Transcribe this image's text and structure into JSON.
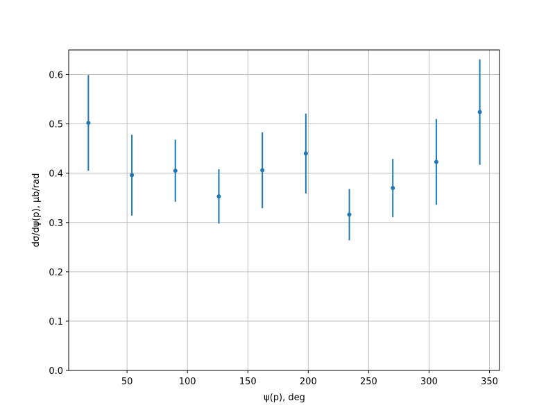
{
  "chart_data": {
    "type": "errorbar",
    "xlabel": "ψ(p), deg",
    "ylabel": "dσ/dψ(p), μb/rad",
    "x": [
      18,
      54,
      90,
      126,
      162,
      198,
      234,
      270,
      306,
      342
    ],
    "series": [
      {
        "color": "#1f77b4",
        "values": [
          0.502,
          0.396,
          0.405,
          0.353,
          0.406,
          0.44,
          0.316,
          0.37,
          0.423,
          0.524
        ],
        "errors": [
          0.097,
          0.082,
          0.063,
          0.055,
          0.077,
          0.081,
          0.052,
          0.059,
          0.087,
          0.107
        ]
      }
    ],
    "xlim": [
      1.7,
      358.3
    ],
    "xticks": [
      50,
      100,
      150,
      200,
      250,
      300,
      350
    ],
    "ylim": [
      0,
      0.65
    ],
    "yticks": [
      {
        "value": 0,
        "label": "0.0"
      },
      0.1,
      0.2,
      0.3,
      0.4,
      0.5,
      0.6
    ],
    "grid": true
  }
}
